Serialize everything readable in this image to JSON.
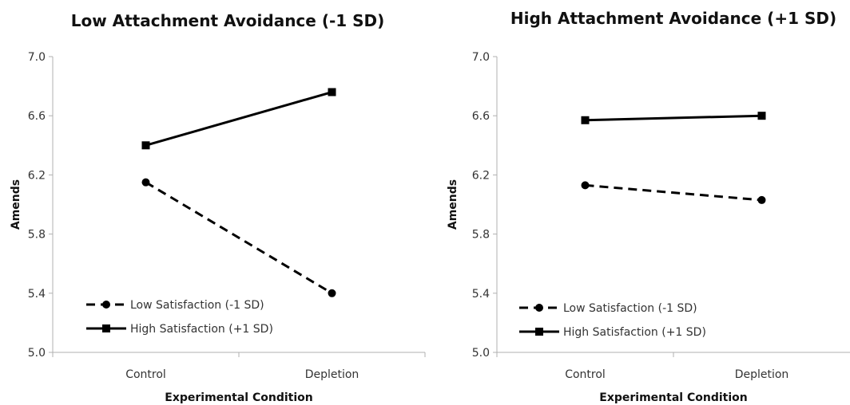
{
  "chart_data": [
    {
      "type": "line",
      "title": "Low Attachment Avoidance (-1 SD)",
      "xlabel": "Experimental Condition",
      "ylabel": "Amends",
      "categories": [
        "Control",
        "Depletion"
      ],
      "ylim": [
        5.0,
        7.0
      ],
      "yticks": [
        "5.0",
        "5.4",
        "5.8",
        "6.2",
        "6.6",
        "7.0"
      ],
      "grid": false,
      "legend_position": "bottom-left",
      "series": [
        {
          "name": "Low Satisfaction (-1 SD)",
          "values": [
            6.15,
            5.4
          ],
          "marker": "circle",
          "line": "dashed"
        },
        {
          "name": "High Satisfaction (+1 SD)",
          "values": [
            6.4,
            6.76
          ],
          "marker": "square",
          "line": "solid"
        }
      ]
    },
    {
      "type": "line",
      "title": "High Attachment Avoidance (+1 SD)",
      "xlabel": "Experimental Condition",
      "ylabel": "Amends",
      "categories": [
        "Control",
        "Depletion"
      ],
      "ylim": [
        5.0,
        7.0
      ],
      "yticks": [
        "5.0",
        "5.4",
        "5.8",
        "6.2",
        "6.6",
        "7.0"
      ],
      "grid": false,
      "legend_position": "bottom-left",
      "series": [
        {
          "name": "Low Satisfaction (-1 SD)",
          "values": [
            6.13,
            6.03
          ],
          "marker": "circle",
          "line": "dashed"
        },
        {
          "name": "High Satisfaction (+1 SD)",
          "values": [
            6.57,
            6.6
          ],
          "marker": "square",
          "line": "solid"
        }
      ]
    }
  ]
}
